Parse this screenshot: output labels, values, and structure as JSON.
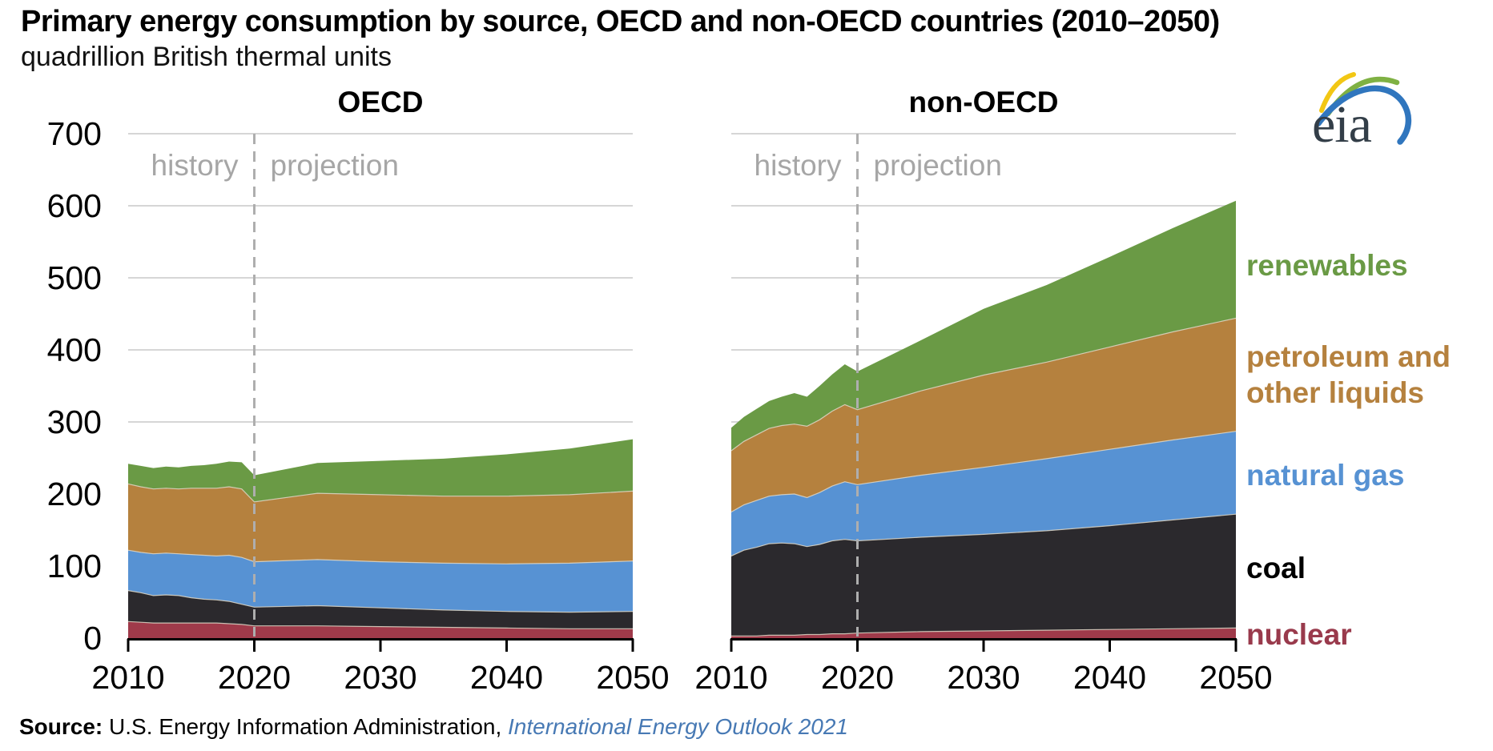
{
  "header": {
    "title": "Primary energy consumption by source, OECD and non-OECD countries (2010–2050)",
    "subtitle": "quadrillion British thermal units",
    "logo_text": "eia",
    "logo_colors": [
      "#f2c714",
      "#7fb143",
      "#3076be"
    ]
  },
  "legend": {
    "items": [
      {
        "label": "renewables",
        "color": "#6a9a45"
      },
      {
        "label": "petroleum and\nother liquids",
        "color": "#b5813e"
      },
      {
        "label": "natural gas",
        "color": "#5792d3"
      },
      {
        "label": "coal",
        "color": "#000000"
      },
      {
        "label": "nuclear",
        "color": "#993a4c"
      }
    ]
  },
  "source": {
    "prefix": "Source:",
    "body": " U.S. Energy Information Administration, ",
    "link": "International Energy Outlook 2021",
    "link_color": "#4779b4"
  },
  "chart_data": {
    "type": "area",
    "stacked": true,
    "units": "quadrillion British thermal units",
    "ylim": [
      0,
      700
    ],
    "yticks": [
      0,
      100,
      200,
      300,
      400,
      500,
      600,
      700
    ],
    "xticks": [
      2010,
      2020,
      2030,
      2040,
      2050
    ],
    "divider_year": 2020,
    "history_label": "history",
    "projection_label": "projection",
    "grid_color": "#d6d6d6",
    "divider_color": "#aeaeae",
    "axis_color": "#000000",
    "annotation_color": "#a6a6a6",
    "boundary_line_color": "#ddd6c6",
    "stack_order": [
      "nuclear",
      "coal",
      "natural_gas",
      "petroleum_and_other_liquids",
      "renewables"
    ],
    "series_colors": {
      "nuclear": "#9f3a4a",
      "coal": "#2b292d",
      "natural_gas": "#5792d3",
      "petroleum_and_other_liquids": "#b5813e",
      "renewables": "#6a9a45"
    },
    "years": [
      2010,
      2011,
      2012,
      2013,
      2014,
      2015,
      2016,
      2017,
      2018,
      2019,
      2020,
      2025,
      2030,
      2035,
      2040,
      2045,
      2050
    ],
    "panels": [
      {
        "title": "OECD",
        "series": {
          "nuclear": [
            23,
            22,
            21,
            21,
            21,
            21,
            21,
            21,
            20,
            19,
            17,
            17,
            16,
            15,
            14,
            13,
            13
          ],
          "coal": [
            43,
            41,
            38,
            39,
            38,
            35,
            33,
            32,
            31,
            28,
            26,
            28,
            26,
            24,
            23,
            23,
            24
          ],
          "natural_gas": [
            56,
            56,
            58,
            58,
            58,
            60,
            61,
            61,
            64,
            65,
            63,
            64,
            64,
            65,
            66,
            68,
            70
          ],
          "petroleum_and_other_liquids": [
            92,
            91,
            90,
            90,
            90,
            92,
            93,
            94,
            95,
            95,
            83,
            92,
            93,
            93,
            94,
            95,
            97
          ],
          "renewables": [
            28,
            29,
            29,
            30,
            30,
            31,
            32,
            34,
            35,
            37,
            37,
            42,
            47,
            52,
            58,
            64,
            72
          ]
        }
      },
      {
        "title": "non-OECD",
        "series": {
          "nuclear": [
            3,
            3,
            3,
            4,
            4,
            4,
            5,
            5,
            6,
            6,
            7,
            9,
            10,
            11,
            12,
            13,
            14
          ],
          "coal": [
            111,
            119,
            123,
            127,
            128,
            127,
            122,
            125,
            129,
            131,
            128,
            131,
            134,
            138,
            144,
            151,
            158
          ],
          "natural_gas": [
            61,
            63,
            65,
            66,
            67,
            69,
            68,
            72,
            76,
            80,
            78,
            86,
            93,
            100,
            106,
            111,
            115
          ],
          "petroleum_and_other_liquids": [
            85,
            88,
            91,
            94,
            96,
            97,
            99,
            101,
            104,
            107,
            104,
            117,
            128,
            134,
            142,
            150,
            157
          ],
          "renewables": [
            32,
            34,
            36,
            38,
            40,
            43,
            41,
            47,
            51,
            56,
            53,
            70,
            92,
            107,
            125,
            144,
            163
          ]
        }
      }
    ]
  }
}
